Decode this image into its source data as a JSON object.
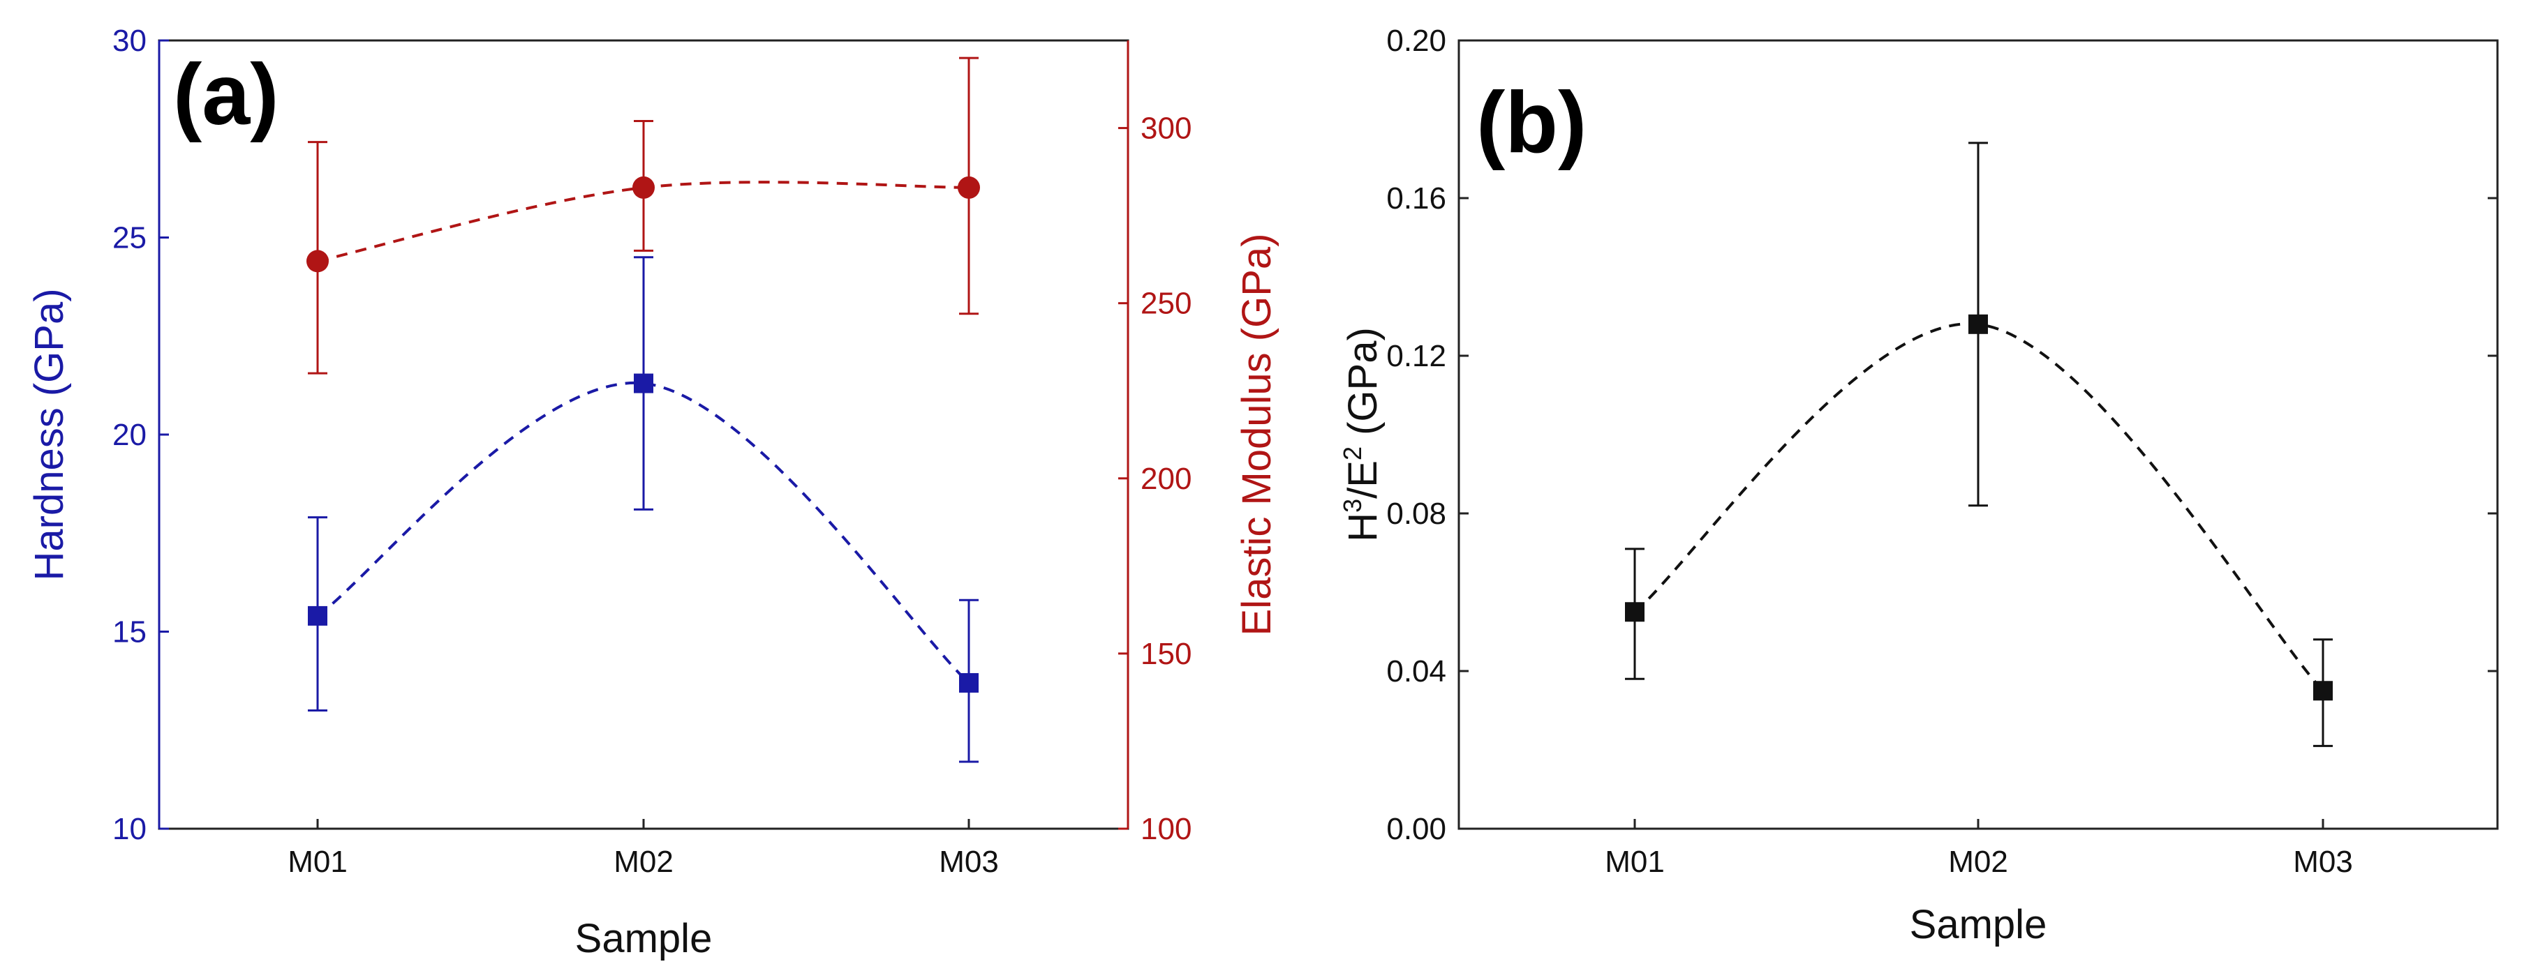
{
  "chart_data": [
    {
      "panel_label": "(a)",
      "type": "line",
      "xlabel": "Sample",
      "categories": [
        "M01",
        "M02",
        "M03"
      ],
      "ylabel_left": "Hardness (GPa)",
      "ylabel_right": "Elastic Modulus (GPa)",
      "ylim_left": [
        10,
        30
      ],
      "yticks_left": [
        10,
        15,
        20,
        25,
        30
      ],
      "ylim_right": [
        100,
        325
      ],
      "yticks_right": [
        100,
        150,
        200,
        250,
        300
      ],
      "series": [
        {
          "name": "Hardness",
          "axis": "left",
          "color": "#1a1aa6",
          "marker": "square",
          "values": [
            15.4,
            21.3,
            13.7
          ],
          "err_low": [
            13.0,
            18.1,
            11.7
          ],
          "err_high": [
            17.9,
            24.5,
            15.8
          ]
        },
        {
          "name": "Elastic Modulus",
          "axis": "right",
          "color": "#b01515",
          "marker": "circle",
          "values": [
            262,
            283,
            283
          ],
          "err_low": [
            230,
            265,
            247
          ],
          "err_high": [
            296,
            302,
            320
          ]
        }
      ]
    },
    {
      "panel_label": "(b)",
      "type": "line",
      "xlabel": "Sample",
      "categories": [
        "M01",
        "M02",
        "M03"
      ],
      "ylabel_main": "H",
      "ylabel_sup1": "3",
      "ylabel_mid": "/E",
      "ylabel_sup2": "2",
      "ylabel_tail": " (GPa)",
      "ylim": [
        0,
        0.2
      ],
      "yticks": [
        "0.00",
        "0.04",
        "0.08",
        "0.12",
        "0.16",
        "0.20"
      ],
      "series": [
        {
          "name": "H3/E2",
          "color": "#111111",
          "marker": "square",
          "values": [
            0.055,
            0.128,
            0.035
          ],
          "err_low": [
            0.038,
            0.082,
            0.021
          ],
          "err_high": [
            0.071,
            0.174,
            0.048
          ]
        }
      ]
    }
  ]
}
